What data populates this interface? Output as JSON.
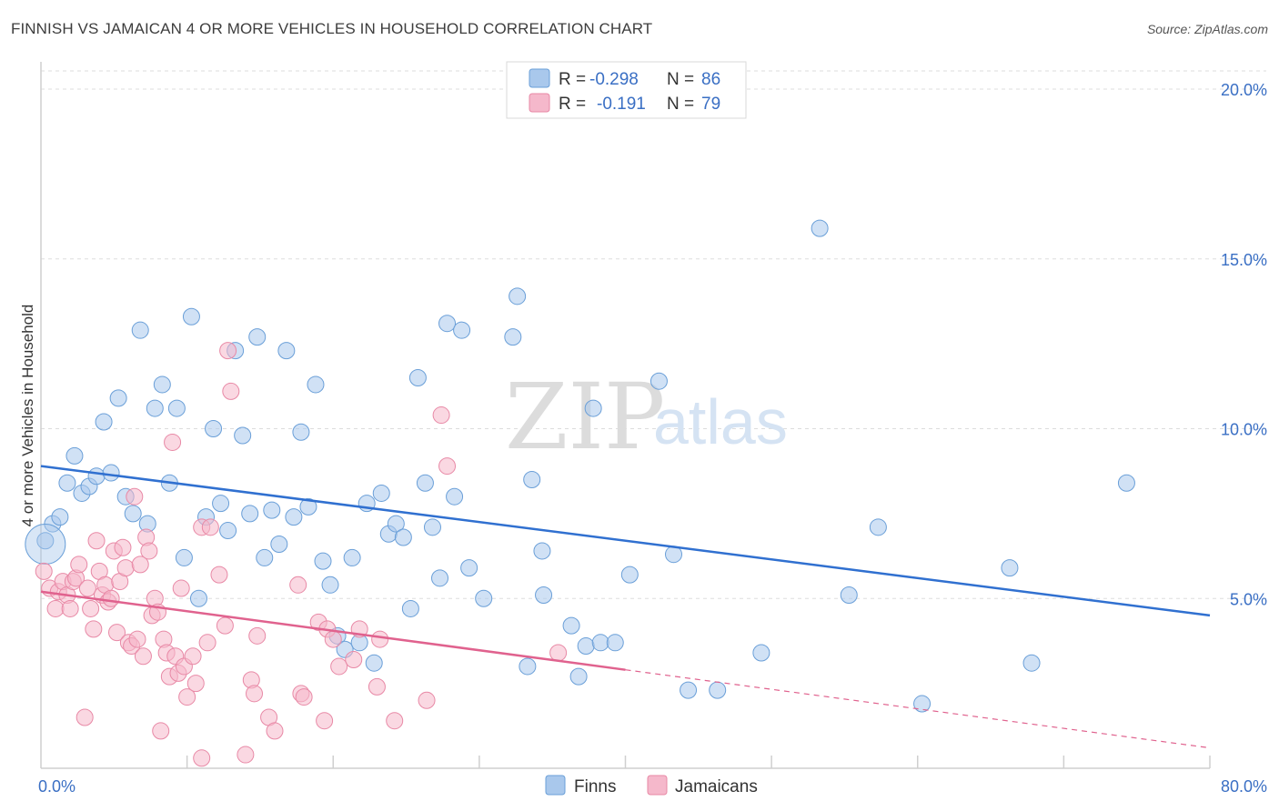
{
  "title": "FINNISH VS JAMAICAN 4 OR MORE VEHICLES IN HOUSEHOLD CORRELATION CHART",
  "source": "Source: ZipAtlas.com",
  "watermark": {
    "zip": "ZIP",
    "atlas": "atlas"
  },
  "legend": {
    "finns": {
      "r_label": "R =",
      "r_value": "-0.298",
      "n_label": "N =",
      "n_value": "86"
    },
    "jamaicans": {
      "r_label": "R =",
      "r_value": "-0.191",
      "n_label": "N =",
      "n_value": "79"
    }
  },
  "bottom_legend": {
    "finns": "Finns",
    "jamaicans": "Jamaicans"
  },
  "colors": {
    "finns_fill": "#a9c8ec",
    "finns_stroke": "#6a9fd8",
    "finns_line": "#3070d0",
    "jamaicans_fill": "#f5b8cb",
    "jamaicans_stroke": "#e889a6",
    "jamaicans_line": "#e0628e",
    "tick_text": "#3a6fc4",
    "grid": "#dddddd"
  },
  "chart_data": {
    "type": "scatter",
    "title": "FINNISH VS JAMAICAN 4 OR MORE VEHICLES IN HOUSEHOLD CORRELATION CHART",
    "xlabel": "",
    "ylabel": "4 or more Vehicles in Household",
    "xlim": [
      0,
      80
    ],
    "ylim": [
      0,
      20
    ],
    "x_tick_labels": [
      "0.0%",
      "80.0%"
    ],
    "y_ticks": [
      5,
      10,
      15,
      20
    ],
    "y_tick_labels": [
      "5.0%",
      "10.0%",
      "15.0%",
      "20.0%"
    ],
    "grid": true,
    "series": [
      {
        "name": "Finns",
        "trend": {
          "x0": 0,
          "y0": 8.9,
          "x1": 80,
          "y1": 4.5,
          "dashed_from": null
        },
        "points": [
          [
            0.3,
            6.7
          ],
          [
            0.8,
            7.2
          ],
          [
            1.3,
            7.4
          ],
          [
            1.8,
            8.4
          ],
          [
            2.3,
            9.2
          ],
          [
            2.8,
            8.1
          ],
          [
            3.3,
            8.3
          ],
          [
            3.8,
            8.6
          ],
          [
            4.3,
            10.2
          ],
          [
            4.8,
            8.7
          ],
          [
            5.3,
            10.9
          ],
          [
            5.8,
            8.0
          ],
          [
            6.3,
            7.5
          ],
          [
            6.8,
            12.9
          ],
          [
            7.3,
            7.2
          ],
          [
            7.8,
            10.6
          ],
          [
            8.3,
            11.3
          ],
          [
            8.8,
            8.4
          ],
          [
            9.3,
            10.6
          ],
          [
            9.8,
            6.2
          ],
          [
            10.3,
            13.3
          ],
          [
            10.8,
            5.0
          ],
          [
            11.3,
            7.4
          ],
          [
            11.8,
            10.0
          ],
          [
            12.3,
            7.8
          ],
          [
            12.8,
            7.0
          ],
          [
            13.3,
            12.3
          ],
          [
            13.8,
            9.8
          ],
          [
            14.3,
            7.5
          ],
          [
            14.8,
            12.7
          ],
          [
            15.3,
            6.2
          ],
          [
            15.8,
            7.6
          ],
          [
            16.3,
            6.6
          ],
          [
            16.8,
            12.3
          ],
          [
            17.3,
            7.4
          ],
          [
            17.8,
            9.9
          ],
          [
            18.3,
            7.7
          ],
          [
            18.8,
            11.3
          ],
          [
            19.3,
            6.1
          ],
          [
            19.8,
            5.4
          ],
          [
            20.3,
            3.9
          ],
          [
            20.8,
            3.5
          ],
          [
            21.3,
            6.2
          ],
          [
            21.8,
            3.7
          ],
          [
            22.3,
            7.8
          ],
          [
            22.8,
            3.1
          ],
          [
            23.3,
            8.1
          ],
          [
            23.8,
            6.9
          ],
          [
            24.3,
            7.2
          ],
          [
            24.8,
            6.8
          ],
          [
            25.3,
            4.7
          ],
          [
            25.8,
            11.5
          ],
          [
            26.3,
            8.4
          ],
          [
            26.8,
            7.1
          ],
          [
            27.3,
            5.6
          ],
          [
            27.8,
            13.1
          ],
          [
            28.3,
            8.0
          ],
          [
            28.8,
            12.9
          ],
          [
            29.3,
            5.9
          ],
          [
            30.3,
            5.0
          ],
          [
            32.3,
            12.7
          ],
          [
            32.6,
            13.9
          ],
          [
            33.3,
            3.0
          ],
          [
            33.6,
            8.5
          ],
          [
            34.3,
            6.4
          ],
          [
            34.4,
            5.1
          ],
          [
            36.3,
            4.2
          ],
          [
            36.8,
            2.7
          ],
          [
            37.3,
            3.6
          ],
          [
            37.8,
            10.6
          ],
          [
            38.3,
            3.7
          ],
          [
            39.3,
            3.7
          ],
          [
            40.3,
            5.7
          ],
          [
            42.3,
            11.4
          ],
          [
            43.3,
            6.3
          ],
          [
            44.3,
            2.3
          ],
          [
            46.3,
            2.3
          ],
          [
            49.3,
            3.4
          ],
          [
            53.3,
            15.9
          ],
          [
            55.3,
            5.1
          ],
          [
            57.3,
            7.1
          ],
          [
            60.3,
            1.9
          ],
          [
            66.3,
            5.9
          ],
          [
            67.8,
            3.1
          ],
          [
            74.3,
            8.4
          ],
          [
            0.3,
            6.6
          ]
        ]
      },
      {
        "name": "Jamaicans",
        "trend": {
          "x0": 0,
          "y0": 5.2,
          "x1": 80,
          "y1": 0.6,
          "dashed_from": 40
        },
        "points": [
          [
            0.2,
            5.8
          ],
          [
            0.6,
            5.3
          ],
          [
            1.0,
            4.7
          ],
          [
            1.2,
            5.2
          ],
          [
            1.5,
            5.5
          ],
          [
            1.8,
            5.1
          ],
          [
            2.0,
            4.7
          ],
          [
            2.2,
            5.5
          ],
          [
            2.4,
            5.6
          ],
          [
            2.6,
            6.0
          ],
          [
            3.0,
            1.5
          ],
          [
            3.2,
            5.3
          ],
          [
            3.4,
            4.7
          ],
          [
            3.6,
            4.1
          ],
          [
            3.8,
            6.7
          ],
          [
            4.0,
            5.8
          ],
          [
            4.2,
            5.1
          ],
          [
            4.4,
            5.4
          ],
          [
            4.6,
            4.9
          ],
          [
            4.8,
            5.0
          ],
          [
            5.0,
            6.4
          ],
          [
            5.2,
            4.0
          ],
          [
            5.4,
            5.5
          ],
          [
            5.6,
            6.5
          ],
          [
            5.8,
            5.9
          ],
          [
            6.0,
            3.7
          ],
          [
            6.2,
            3.6
          ],
          [
            6.4,
            8.0
          ],
          [
            6.6,
            3.8
          ],
          [
            6.8,
            6.0
          ],
          [
            7.0,
            3.3
          ],
          [
            7.2,
            6.8
          ],
          [
            7.4,
            6.4
          ],
          [
            7.6,
            4.5
          ],
          [
            7.8,
            5.0
          ],
          [
            8.0,
            4.6
          ],
          [
            8.2,
            1.1
          ],
          [
            8.4,
            3.8
          ],
          [
            8.6,
            3.4
          ],
          [
            8.8,
            2.7
          ],
          [
            9.0,
            9.6
          ],
          [
            9.2,
            3.3
          ],
          [
            9.4,
            2.8
          ],
          [
            9.6,
            5.3
          ],
          [
            9.8,
            3.0
          ],
          [
            10.0,
            2.1
          ],
          [
            10.4,
            3.3
          ],
          [
            10.6,
            2.5
          ],
          [
            11.0,
            7.1
          ],
          [
            11.4,
            3.7
          ],
          [
            11.6,
            7.1
          ],
          [
            12.2,
            5.7
          ],
          [
            12.6,
            4.2
          ],
          [
            12.8,
            12.3
          ],
          [
            13.0,
            11.1
          ],
          [
            14.0,
            0.4
          ],
          [
            14.4,
            2.6
          ],
          [
            14.6,
            2.2
          ],
          [
            14.8,
            3.9
          ],
          [
            15.6,
            1.5
          ],
          [
            16.0,
            1.1
          ],
          [
            17.6,
            5.4
          ],
          [
            17.8,
            2.2
          ],
          [
            18.0,
            2.1
          ],
          [
            19.0,
            4.3
          ],
          [
            19.4,
            1.4
          ],
          [
            19.6,
            4.1
          ],
          [
            20.0,
            3.8
          ],
          [
            20.4,
            3.0
          ],
          [
            21.4,
            3.2
          ],
          [
            21.8,
            4.1
          ],
          [
            23.0,
            2.4
          ],
          [
            23.2,
            3.8
          ],
          [
            26.4,
            2.0
          ],
          [
            27.4,
            10.4
          ],
          [
            27.8,
            8.9
          ],
          [
            35.4,
            3.4
          ],
          [
            11.0,
            0.3
          ],
          [
            24.2,
            1.4
          ]
        ]
      }
    ]
  }
}
